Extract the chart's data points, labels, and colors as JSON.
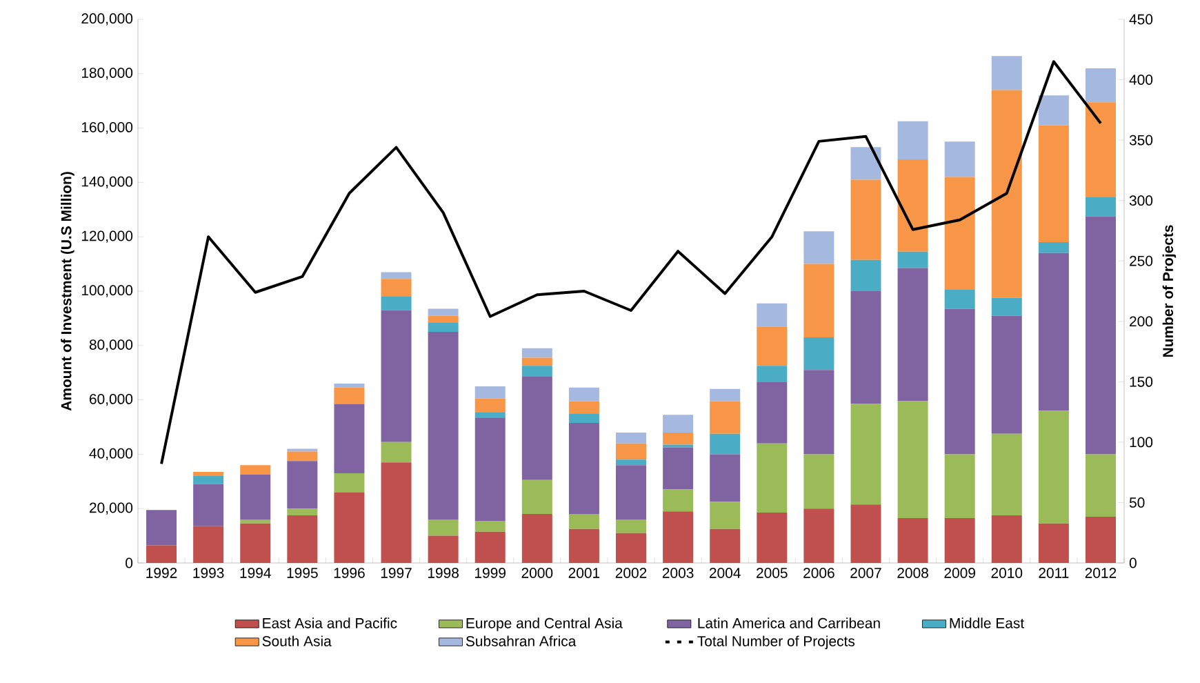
{
  "chart_data": {
    "type": "bar",
    "stacked": true,
    "ylabel": "Amount of Investment (U.S Million)",
    "y2label": "Number of Projects",
    "categories": [
      "1992",
      "1993",
      "1994",
      "1995",
      "1996",
      "1997",
      "1998",
      "1999",
      "2000",
      "2001",
      "2002",
      "2003",
      "2004",
      "2005",
      "2006",
      "2007",
      "2008",
      "2009",
      "2010",
      "2011",
      "2012"
    ],
    "ylim": [
      0,
      200000
    ],
    "yticks": [
      {
        "value": 0,
        "label": "0"
      },
      {
        "value": 20000,
        "label": "20,000"
      },
      {
        "value": 40000,
        "label": "40,000"
      },
      {
        "value": 60000,
        "label": "60,000"
      },
      {
        "value": 80000,
        "label": "80,000"
      },
      {
        "value": 100000,
        "label": "100,000"
      },
      {
        "value": 120000,
        "label": "120,000"
      },
      {
        "value": 140000,
        "label": "140,000"
      },
      {
        "value": 160000,
        "label": "160,000"
      },
      {
        "value": 180000,
        "label": "180,000"
      },
      {
        "value": 200000,
        "label": "200,000"
      }
    ],
    "y2lim": [
      0,
      450
    ],
    "y2ticks": [
      0,
      50,
      100,
      150,
      200,
      250,
      300,
      350,
      400,
      450
    ],
    "legend": "bottom",
    "series": [
      {
        "name": "East Asia and Pacific",
        "color": "#c0504d",
        "values": [
          6500,
          13500,
          14500,
          17500,
          26000,
          37000,
          10000,
          11500,
          18000,
          12500,
          11000,
          19000,
          12500,
          18500,
          20000,
          21500,
          16500,
          16500,
          17500,
          14500,
          17000
        ]
      },
      {
        "name": "Europe and Central Asia",
        "color": "#9bbb59",
        "values": [
          0,
          0,
          1500,
          2500,
          7000,
          7500,
          6000,
          4000,
          12500,
          5500,
          5000,
          8000,
          10000,
          25500,
          20000,
          37000,
          43000,
          23500,
          30000,
          41500,
          23000
        ]
      },
      {
        "name": "Latin America and Carribean",
        "color": "#8064a2",
        "values": [
          13000,
          15500,
          16500,
          17500,
          25500,
          48500,
          69000,
          38000,
          38000,
          33500,
          20000,
          15500,
          17500,
          22500,
          31000,
          41500,
          49000,
          53500,
          43500,
          58000,
          87500
        ]
      },
      {
        "name": "Middle East",
        "color": "#4bacc6",
        "values": [
          0,
          3000,
          0,
          0,
          0,
          5000,
          3500,
          2000,
          4000,
          3500,
          2000,
          1000,
          7500,
          6000,
          12000,
          11500,
          6000,
          7000,
          6500,
          4000,
          7000
        ]
      },
      {
        "name": "South Asia",
        "color": "#f79646",
        "values": [
          0,
          1500,
          3500,
          3500,
          6000,
          6500,
          2500,
          5000,
          3000,
          4500,
          6000,
          4500,
          12000,
          14500,
          27000,
          29500,
          34000,
          41500,
          76500,
          43000,
          35000
        ]
      },
      {
        "name": "Subsahran Africa",
        "color": "#a5b8e0",
        "values": [
          0,
          0,
          0,
          1000,
          1500,
          2500,
          2500,
          4500,
          3500,
          5000,
          4000,
          6500,
          4500,
          8500,
          12000,
          12000,
          14000,
          13000,
          12500,
          11000,
          12500
        ]
      },
      {
        "name": "Total  Number of Projects",
        "color": "#000000",
        "type": "line",
        "axis": "y2",
        "values": [
          82,
          270,
          224,
          237,
          306,
          344,
          290,
          204,
          222,
          225,
          209,
          258,
          223,
          270,
          349,
          353,
          276,
          284,
          306,
          415,
          364
        ]
      }
    ]
  }
}
